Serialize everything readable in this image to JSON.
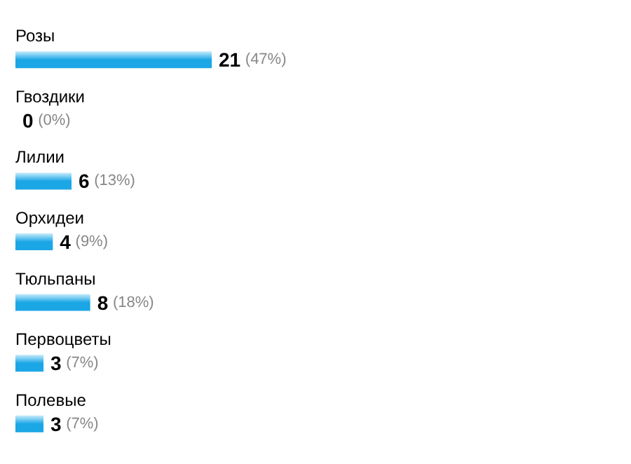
{
  "chart_data": {
    "type": "bar",
    "orientation": "horizontal",
    "categories": [
      "Розы",
      "Гвоздики",
      "Лилии",
      "Орхидеи",
      "Тюльпаны",
      "Первоцветы",
      "Полевые"
    ],
    "values": [
      21,
      0,
      6,
      4,
      8,
      3,
      3
    ],
    "value_labels": [
      "21 (47%)",
      "0 (0%)",
      "6 (13%)",
      "4 (9%)",
      "8 (18%)",
      "3 (7%)",
      "3 (7%)"
    ],
    "color": "#1ba6e6"
  }
}
